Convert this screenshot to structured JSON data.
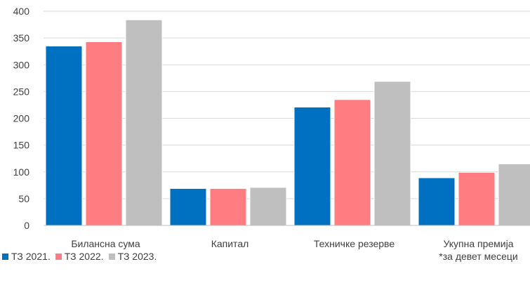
{
  "chart_data": {
    "type": "bar",
    "categories": [
      "Билансна сума",
      "Капитал",
      "Техничке резерве",
      "Укупна премија"
    ],
    "category_notes": [
      "",
      "",
      "",
      "*за девет месеци"
    ],
    "series": [
      {
        "name": "ТЗ 2021.",
        "values": [
          335,
          69,
          221,
          89
        ],
        "color": "#0070C0"
      },
      {
        "name": "ТЗ 2022.",
        "values": [
          343,
          69,
          235,
          99
        ],
        "color": "#FF7C80"
      },
      {
        "name": "ТЗ 2023.",
        "values": [
          384,
          71,
          269,
          115
        ],
        "color": "#BFBFBF"
      }
    ],
    "ylim": [
      0,
      400
    ],
    "yticks": [
      0,
      50,
      100,
      150,
      200,
      250,
      300,
      350,
      400
    ],
    "grid": true,
    "legend_position": "bottom-left",
    "title": "",
    "xlabel": "",
    "ylabel": ""
  }
}
